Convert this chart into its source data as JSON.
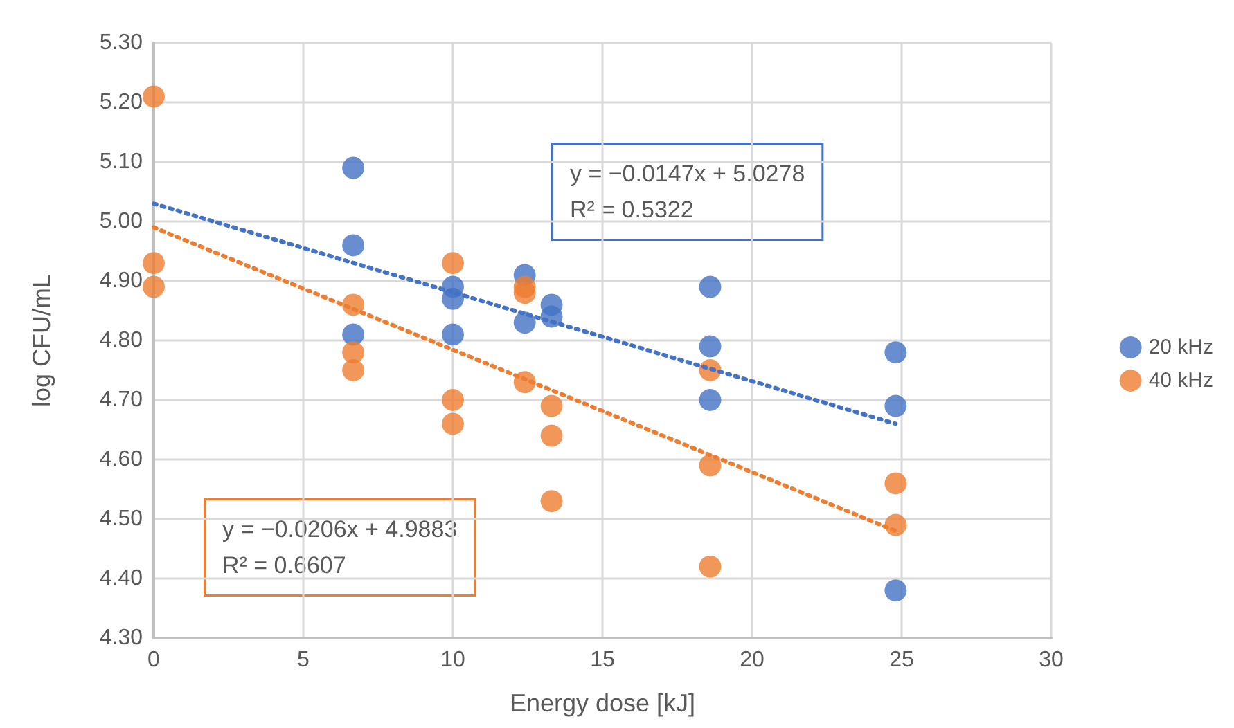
{
  "chart_data": {
    "type": "scatter",
    "xlabel": "Energy dose [kJ]",
    "ylabel": "log CFU/mL",
    "xlim": [
      0,
      30
    ],
    "xticks": [
      0,
      5,
      10,
      15,
      20,
      25,
      30
    ],
    "ylim": [
      4.3,
      5.3
    ],
    "yticks": [
      {
        "value": 4.3,
        "label": "4.30"
      },
      {
        "value": 4.4,
        "label": "4.40"
      },
      {
        "value": 4.5,
        "label": "4.50"
      },
      {
        "value": 4.6,
        "label": "4.60"
      },
      {
        "value": 4.7,
        "label": "4.70"
      },
      {
        "value": 4.8,
        "label": "4.80"
      },
      {
        "value": 4.9,
        "label": "4.90"
      },
      {
        "value": 5.0,
        "label": "5.00"
      },
      {
        "value": 5.1,
        "label": "5.10"
      },
      {
        "value": 5.2,
        "label": "5.20"
      },
      {
        "value": 5.3,
        "label": "5.30"
      }
    ],
    "grid": true,
    "legend": "right",
    "marker": "circle",
    "series": [
      {
        "name": "20 kHz",
        "color": "#4472c4",
        "x": [
          6.67,
          6.67,
          6.67,
          10,
          10,
          10,
          12.4,
          12.4,
          13.3,
          13.3,
          18.6,
          18.6,
          18.6,
          24.8,
          24.8,
          24.8
        ],
        "values": [
          5.09,
          4.96,
          4.81,
          4.89,
          4.87,
          4.81,
          4.91,
          4.83,
          4.86,
          4.84,
          4.89,
          4.79,
          4.7,
          4.78,
          4.69,
          4.38
        ]
      },
      {
        "name": "40 kHz",
        "color": "#ed7d31",
        "x": [
          0,
          0,
          0,
          6.67,
          6.67,
          6.67,
          10,
          10,
          10,
          12.4,
          12.4,
          12.4,
          13.3,
          13.3,
          13.3,
          18.6,
          18.6,
          18.6,
          24.8,
          24.8
        ],
        "values": [
          5.21,
          4.93,
          4.89,
          4.86,
          4.78,
          4.75,
          4.93,
          4.7,
          4.66,
          4.89,
          4.88,
          4.73,
          4.69,
          4.64,
          4.53,
          4.75,
          4.59,
          4.42,
          4.56,
          4.49
        ]
      },
      {
        "type": "line",
        "color": "#4472c4",
        "line_style": "dotted",
        "marker": "none",
        "x": [
          0,
          24.8
        ],
        "values": [
          5.03,
          4.66
        ]
      },
      {
        "type": "line",
        "color": "#ed7d31",
        "line_style": "dotted",
        "marker": "none",
        "x": [
          0,
          24.8
        ],
        "values": [
          4.99,
          4.48
        ]
      }
    ],
    "annotations": [
      "y = −0.0147x + 5.0278\nR² = 0.5322",
      "y = −0.0206x + 4.9883\nR² = 0.6607"
    ]
  }
}
